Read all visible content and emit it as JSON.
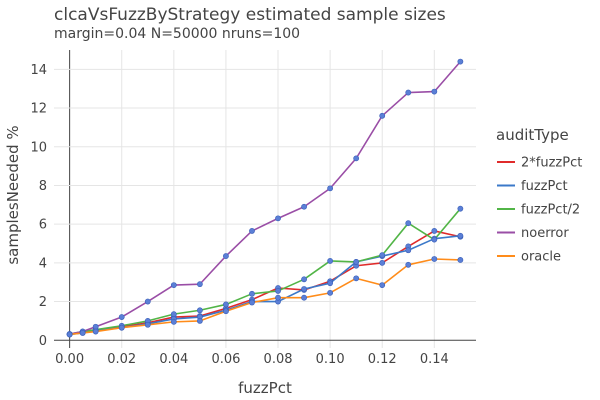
{
  "chart_data": {
    "type": "line",
    "title": "clcaVsFuzzByStrategy estimated sample sizes",
    "subtitle": "margin=0.04 N=50000 nruns=100",
    "xlabel": "fuzzPct",
    "ylabel": "samplesNeeded %",
    "xlim": [
      -0.006,
      0.156
    ],
    "ylim": [
      -0.4,
      15.0
    ],
    "xticks": [
      0,
      0.02,
      0.04,
      0.06,
      0.08,
      0.1,
      0.12,
      0.14
    ],
    "xtick_labels": [
      "0.00",
      "0.02",
      "0.04",
      "0.06",
      "0.08",
      "0.10",
      "0.12",
      "0.14"
    ],
    "yticks": [
      0,
      2,
      4,
      6,
      8,
      10,
      12,
      14
    ],
    "ytick_labels": [
      "0",
      "2",
      "4",
      "6",
      "8",
      "10",
      "12",
      "14"
    ],
    "grid": true,
    "legend_title": "auditType",
    "legend_position": "right",
    "marker_color": "#5b7fd6",
    "x": [
      0,
      0.005,
      0.01,
      0.02,
      0.03,
      0.04,
      0.05,
      0.06,
      0.07,
      0.08,
      0.09,
      0.1,
      0.11,
      0.12,
      0.13,
      0.14,
      0.15
    ],
    "series": [
      {
        "name": "2*fuzzPct",
        "color": "#e02b2b",
        "values": [
          0.3,
          0.42,
          0.5,
          0.7,
          0.9,
          1.2,
          1.25,
          1.65,
          2.1,
          2.7,
          2.6,
          3.05,
          3.85,
          4.0,
          4.85,
          5.65,
          5.35
        ]
      },
      {
        "name": "fuzzPct",
        "color": "#3b79c9",
        "values": [
          0.3,
          0.38,
          0.5,
          0.65,
          0.85,
          1.1,
          1.2,
          1.55,
          2.0,
          2.0,
          2.65,
          2.95,
          4.05,
          4.35,
          4.65,
          5.25,
          5.4
        ]
      },
      {
        "name": "fuzzPct/2",
        "color": "#52b547",
        "values": [
          0.32,
          0.45,
          0.55,
          0.75,
          1.0,
          1.35,
          1.55,
          1.85,
          2.4,
          2.55,
          3.15,
          4.1,
          4.05,
          4.4,
          6.05,
          5.2,
          6.8
        ]
      },
      {
        "name": "noerror",
        "color": "#9a4ea6",
        "values": [
          0.32,
          0.45,
          0.7,
          1.2,
          2.0,
          2.85,
          2.9,
          4.35,
          5.65,
          6.3,
          6.9,
          7.85,
          9.4,
          11.6,
          12.8,
          12.85,
          14.4
        ]
      },
      {
        "name": "oracle",
        "color": "#ff8c1a",
        "values": [
          0.3,
          0.38,
          0.45,
          0.65,
          0.8,
          0.95,
          1.0,
          1.5,
          1.95,
          2.2,
          2.2,
          2.45,
          3.2,
          2.85,
          3.9,
          4.2,
          4.15
        ]
      }
    ]
  }
}
